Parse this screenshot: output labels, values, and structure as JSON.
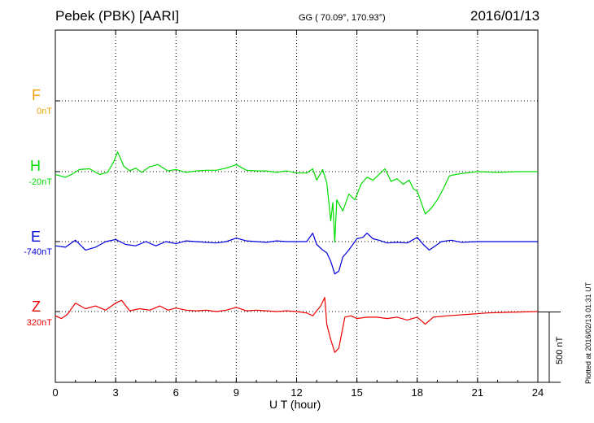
{
  "header": {
    "station": "Pebek (PBK)  [AARI]",
    "coords": "GG ( 70.09°, 170.93°)",
    "date": "2016/01/13"
  },
  "side_note": "Plotted at 2016/02/13 01:31  UT",
  "colors": {
    "F": "#f0a000",
    "H": "#00dd00",
    "E": "#0000dd",
    "Z": "#ee0000"
  },
  "chart_data": {
    "type": "line",
    "xlabel": "U T (hour)",
    "xlim": [
      0,
      24
    ],
    "xticks": [
      "0",
      "3",
      "6",
      "9",
      "12",
      "15",
      "18",
      "21",
      "24"
    ],
    "grid": true,
    "scale_bar": {
      "label": "500 nT",
      "nT": 500
    },
    "nT_per_division": 500,
    "series": [
      {
        "name": "F",
        "base": "0nT",
        "color": "#f0a000",
        "points": []
      },
      {
        "name": "H",
        "base": "-20nT",
        "color": "#00dd00",
        "points": [
          [
            0,
            -20
          ],
          [
            0.5,
            -40
          ],
          [
            0.8,
            -20
          ],
          [
            1.2,
            15
          ],
          [
            1.7,
            20
          ],
          [
            2.2,
            -20
          ],
          [
            2.6,
            -5
          ],
          [
            2.9,
            70
          ],
          [
            3.1,
            140
          ],
          [
            3.4,
            40
          ],
          [
            3.7,
            5
          ],
          [
            4.0,
            25
          ],
          [
            4.3,
            -5
          ],
          [
            4.7,
            35
          ],
          [
            5.1,
            50
          ],
          [
            5.6,
            5
          ],
          [
            6.0,
            15
          ],
          [
            6.5,
            -5
          ],
          [
            7.0,
            5
          ],
          [
            7.5,
            10
          ],
          [
            8.0,
            10
          ],
          [
            8.5,
            25
          ],
          [
            9.0,
            50
          ],
          [
            9.5,
            10
          ],
          [
            10.0,
            5
          ],
          [
            10.5,
            5
          ],
          [
            11.0,
            -5
          ],
          [
            11.5,
            5
          ],
          [
            12.0,
            -10
          ],
          [
            12.5,
            -10
          ],
          [
            12.8,
            20
          ],
          [
            13.0,
            -60
          ],
          [
            13.3,
            15
          ],
          [
            13.5,
            -80
          ],
          [
            13.7,
            -350
          ],
          [
            13.8,
            -220
          ],
          [
            13.9,
            -500
          ],
          [
            14.0,
            -200
          ],
          [
            14.3,
            -280
          ],
          [
            14.6,
            -160
          ],
          [
            14.9,
            -200
          ],
          [
            15.2,
            -90
          ],
          [
            15.5,
            -40
          ],
          [
            15.8,
            -60
          ],
          [
            16.1,
            -20
          ],
          [
            16.4,
            20
          ],
          [
            16.7,
            -70
          ],
          [
            17.0,
            -50
          ],
          [
            17.3,
            -90
          ],
          [
            17.6,
            -60
          ],
          [
            17.8,
            -120
          ],
          [
            18.0,
            -140
          ],
          [
            18.2,
            -220
          ],
          [
            18.4,
            -300
          ],
          [
            18.7,
            -260
          ],
          [
            19.0,
            -200
          ],
          [
            19.3,
            -120
          ],
          [
            19.6,
            -30
          ],
          [
            19.9,
            -20
          ],
          [
            20.4,
            -10
          ],
          [
            21,
            0
          ],
          [
            22,
            -5
          ],
          [
            23,
            0
          ],
          [
            24,
            0
          ]
        ]
      },
      {
        "name": "E",
        "base": "-740nT",
        "color": "#0000dd",
        "points": [
          [
            0,
            -30
          ],
          [
            0.5,
            -40
          ],
          [
            1.0,
            10
          ],
          [
            1.5,
            -60
          ],
          [
            2.0,
            -40
          ],
          [
            2.5,
            0
          ],
          [
            3.0,
            15
          ],
          [
            3.5,
            -20
          ],
          [
            4.0,
            -30
          ],
          [
            4.5,
            0
          ],
          [
            5.0,
            -30
          ],
          [
            5.5,
            0
          ],
          [
            6.0,
            -15
          ],
          [
            6.5,
            5
          ],
          [
            7.0,
            0
          ],
          [
            7.5,
            -5
          ],
          [
            8.0,
            -10
          ],
          [
            8.5,
            0
          ],
          [
            9.0,
            25
          ],
          [
            9.5,
            5
          ],
          [
            10.0,
            0
          ],
          [
            10.5,
            -5
          ],
          [
            11.0,
            5
          ],
          [
            11.5,
            0
          ],
          [
            12.0,
            0
          ],
          [
            12.5,
            0
          ],
          [
            12.8,
            60
          ],
          [
            13.0,
            -20
          ],
          [
            13.3,
            -60
          ],
          [
            13.5,
            -80
          ],
          [
            13.7,
            -140
          ],
          [
            13.9,
            -230
          ],
          [
            14.1,
            -210
          ],
          [
            14.3,
            -110
          ],
          [
            14.6,
            -60
          ],
          [
            15.0,
            20
          ],
          [
            15.3,
            30
          ],
          [
            15.5,
            60
          ],
          [
            15.8,
            20
          ],
          [
            16.1,
            10
          ],
          [
            16.5,
            -10
          ],
          [
            17.0,
            -5
          ],
          [
            17.5,
            -10
          ],
          [
            18.0,
            30
          ],
          [
            18.3,
            -20
          ],
          [
            18.6,
            -60
          ],
          [
            18.9,
            -30
          ],
          [
            19.2,
            0
          ],
          [
            19.7,
            10
          ],
          [
            20.2,
            -5
          ],
          [
            21,
            0
          ],
          [
            22,
            0
          ],
          [
            23,
            0
          ],
          [
            24,
            0
          ]
        ]
      },
      {
        "name": "Z",
        "base": "320nT",
        "color": "#ee0000",
        "points": [
          [
            0,
            -30
          ],
          [
            0.3,
            -50
          ],
          [
            0.6,
            -20
          ],
          [
            1.0,
            60
          ],
          [
            1.5,
            20
          ],
          [
            2.0,
            40
          ],
          [
            2.5,
            10
          ],
          [
            3.0,
            60
          ],
          [
            3.3,
            80
          ],
          [
            3.7,
            5
          ],
          [
            4.2,
            20
          ],
          [
            4.7,
            10
          ],
          [
            5.2,
            40
          ],
          [
            5.6,
            10
          ],
          [
            6.0,
            25
          ],
          [
            6.5,
            10
          ],
          [
            7.0,
            5
          ],
          [
            7.5,
            10
          ],
          [
            8.0,
            0
          ],
          [
            8.5,
            10
          ],
          [
            9.0,
            30
          ],
          [
            9.5,
            5
          ],
          [
            10.0,
            10
          ],
          [
            10.5,
            5
          ],
          [
            11.0,
            0
          ],
          [
            11.5,
            5
          ],
          [
            12.0,
            0
          ],
          [
            12.5,
            -10
          ],
          [
            12.8,
            -30
          ],
          [
            13.0,
            5
          ],
          [
            13.2,
            40
          ],
          [
            13.4,
            100
          ],
          [
            13.5,
            -90
          ],
          [
            13.7,
            -200
          ],
          [
            13.9,
            -290
          ],
          [
            14.1,
            -260
          ],
          [
            14.4,
            -40
          ],
          [
            14.7,
            -30
          ],
          [
            15.0,
            -50
          ],
          [
            15.5,
            -40
          ],
          [
            16.0,
            -40
          ],
          [
            16.5,
            -50
          ],
          [
            17.0,
            -40
          ],
          [
            17.5,
            -60
          ],
          [
            18.0,
            -40
          ],
          [
            18.4,
            -90
          ],
          [
            18.8,
            -40
          ],
          [
            19.5,
            -30
          ],
          [
            20.5,
            -20
          ],
          [
            21.5,
            -10
          ],
          [
            22.5,
            -5
          ],
          [
            24,
            0
          ]
        ]
      }
    ]
  }
}
